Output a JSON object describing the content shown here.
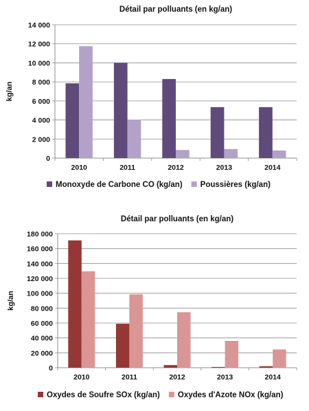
{
  "chart_data": [
    {
      "type": "bar",
      "title": "Détail par polluants (en kg/an)",
      "xlabel": "",
      "ylabel": "kg/an",
      "categories": [
        "2010",
        "2011",
        "2012",
        "2013",
        "2014"
      ],
      "ylim": [
        0,
        14000
      ],
      "yticks": [
        0,
        2000,
        4000,
        6000,
        8000,
        10000,
        12000,
        14000
      ],
      "ytick_labels": [
        "0",
        "2 000",
        "4 000",
        "6 000",
        "8 000",
        "10 000",
        "12 000",
        "14 000"
      ],
      "grid": true,
      "legend_position": "bottom",
      "series": [
        {
          "name": "Monoxyde de Carbone CO (kg/an)",
          "color": "#604a7b",
          "values": [
            7850,
            10000,
            8300,
            5350,
            5350
          ]
        },
        {
          "name": "Poussières (kg/an)",
          "color": "#b3a2c7",
          "values": [
            11750,
            4000,
            850,
            950,
            800
          ]
        }
      ]
    },
    {
      "type": "bar",
      "title": "Détail par polluants (en kg/an)",
      "xlabel": "",
      "ylabel": "kg/an",
      "categories": [
        "2010",
        "2011",
        "2012",
        "2013",
        "2014"
      ],
      "ylim": [
        0,
        180000
      ],
      "yticks": [
        0,
        20000,
        40000,
        60000,
        80000,
        100000,
        120000,
        140000,
        160000,
        180000
      ],
      "ytick_labels": [
        "0",
        "20 000",
        "40 000",
        "60 000",
        "80 000",
        "100 000",
        "120 000",
        "140 000",
        "160 000",
        "180 000"
      ],
      "grid": true,
      "legend_position": "bottom",
      "series": [
        {
          "name": "Oxydes de Soufre SOx (kg/an)",
          "color": "#953735",
          "values": [
            171000,
            59000,
            3500,
            1000,
            2000
          ]
        },
        {
          "name": "Oxydes d'Azote NOx (kg/an)",
          "color": "#d99694",
          "values": [
            129500,
            98500,
            74500,
            36000,
            24500
          ]
        }
      ]
    }
  ]
}
